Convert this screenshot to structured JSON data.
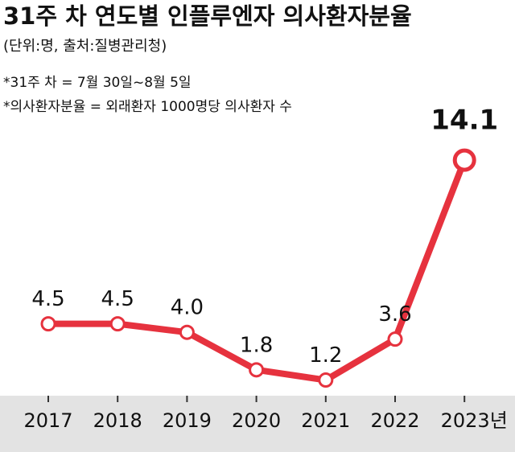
{
  "chart_data": {
    "type": "line",
    "title": "31주 차 연도별 인플루엔자 의사환자분율",
    "subtitle": "(단위:명, 출처:질병관리청)",
    "notes": [
      "*31주 차 = 7월 30일~8월 5일",
      "*의사환자분율 = 외래환자 1000명당 의사환자 수"
    ],
    "categories": [
      "2017",
      "2018",
      "2019",
      "2020",
      "2021",
      "2022",
      "2023년"
    ],
    "values": [
      4.5,
      4.5,
      4.0,
      1.8,
      1.2,
      3.6,
      14.1
    ],
    "value_labels": [
      "4.5",
      "4.5",
      "4.0",
      "1.8",
      "1.2",
      "3.6",
      "14.1"
    ],
    "color": "#e6323e"
  }
}
